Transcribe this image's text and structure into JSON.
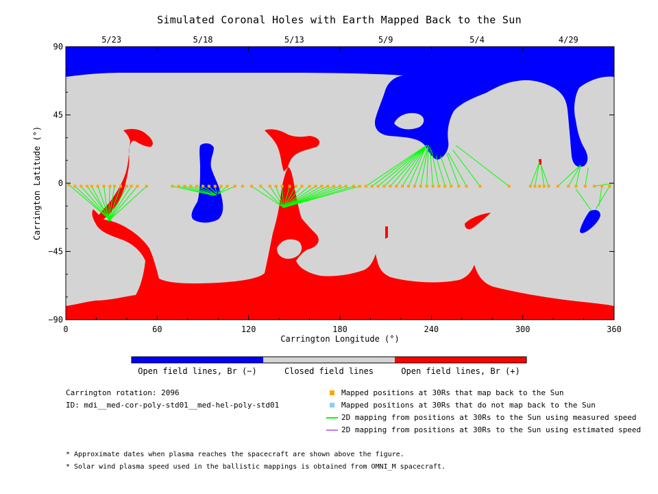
{
  "chart_data": {
    "type": "scatter",
    "title": "Simulated Coronal Holes with Earth Mapped Back to the Sun",
    "xlabel": "Carrington Longitude (°)",
    "ylabel": "Carrington Latitude (°)",
    "xlim": [
      0,
      360
    ],
    "ylim": [
      -90,
      90
    ],
    "x_ticks": [
      "0",
      "60",
      "120",
      "180",
      "240",
      "300",
      "360"
    ],
    "y_ticks": [
      "90",
      "45",
      "0",
      "−45",
      "−90"
    ],
    "top_date_ticks": [
      {
        "label": "5/23",
        "lon": 30
      },
      {
        "label": "5/18",
        "lon": 90
      },
      {
        "label": "5/13",
        "lon": 150
      },
      {
        "label": "5/9",
        "lon": 210
      },
      {
        "label": "5/4",
        "lon": 270
      },
      {
        "label": "4/29",
        "lon": 330
      }
    ],
    "mapped_points": [
      {
        "lon": 2,
        "lat": -1
      },
      {
        "lon": 6,
        "lat": -2
      },
      {
        "lon": 10,
        "lat": -2
      },
      {
        "lon": 14,
        "lat": -2
      },
      {
        "lon": 17,
        "lat": -2
      },
      {
        "lon": 21,
        "lat": -2
      },
      {
        "lon": 25,
        "lat": -2
      },
      {
        "lon": 29,
        "lat": -2
      },
      {
        "lon": 32,
        "lat": -2
      },
      {
        "lon": 36,
        "lat": -2
      },
      {
        "lon": 40,
        "lat": -2
      },
      {
        "lon": 43,
        "lat": -2
      },
      {
        "lon": 47,
        "lat": -2
      },
      {
        "lon": 53,
        "lat": -2
      },
      {
        "lon": 70,
        "lat": -2
      },
      {
        "lon": 74,
        "lat": -2
      },
      {
        "lon": 78,
        "lat": -2
      },
      {
        "lon": 82,
        "lat": -2
      },
      {
        "lon": 86,
        "lat": -2
      },
      {
        "lon": 90,
        "lat": -2
      },
      {
        "lon": 94,
        "lat": -2
      },
      {
        "lon": 98,
        "lat": -2
      },
      {
        "lon": 102,
        "lat": -2
      },
      {
        "lon": 106,
        "lat": -2
      },
      {
        "lon": 111,
        "lat": -2
      },
      {
        "lon": 116,
        "lat": -2
      },
      {
        "lon": 122,
        "lat": -2
      },
      {
        "lon": 128,
        "lat": -2
      },
      {
        "lon": 134,
        "lat": -2
      },
      {
        "lon": 138,
        "lat": -2
      },
      {
        "lon": 142,
        "lat": -2
      },
      {
        "lon": 147,
        "lat": -2
      },
      {
        "lon": 151,
        "lat": -2
      },
      {
        "lon": 155,
        "lat": -2
      },
      {
        "lon": 160,
        "lat": -2
      },
      {
        "lon": 164,
        "lat": -2
      },
      {
        "lon": 168,
        "lat": -2
      },
      {
        "lon": 172,
        "lat": -2
      },
      {
        "lon": 176,
        "lat": -2
      },
      {
        "lon": 180,
        "lat": -2
      },
      {
        "lon": 184,
        "lat": -2
      },
      {
        "lon": 189,
        "lat": -2
      },
      {
        "lon": 193,
        "lat": -2
      },
      {
        "lon": 197,
        "lat": -2
      },
      {
        "lon": 201,
        "lat": -2
      },
      {
        "lon": 205,
        "lat": -2
      },
      {
        "lon": 209,
        "lat": -2
      },
      {
        "lon": 213,
        "lat": -2
      },
      {
        "lon": 217,
        "lat": -2
      },
      {
        "lon": 221,
        "lat": -2
      },
      {
        "lon": 225,
        "lat": -2
      },
      {
        "lon": 229,
        "lat": -2
      },
      {
        "lon": 233,
        "lat": -2
      },
      {
        "lon": 237,
        "lat": -2
      },
      {
        "lon": 241,
        "lat": -2
      },
      {
        "lon": 245,
        "lat": -2
      },
      {
        "lon": 249,
        "lat": -2
      },
      {
        "lon": 253,
        "lat": -2
      },
      {
        "lon": 258,
        "lat": -2
      },
      {
        "lon": 263,
        "lat": -2
      },
      {
        "lon": 272,
        "lat": -2
      },
      {
        "lon": 291,
        "lat": -2
      },
      {
        "lon": 305,
        "lat": -2
      },
      {
        "lon": 308,
        "lat": -2
      },
      {
        "lon": 311,
        "lat": -2
      },
      {
        "lon": 314,
        "lat": -2
      },
      {
        "lon": 317,
        "lat": -2
      },
      {
        "lon": 323,
        "lat": -2
      },
      {
        "lon": 330,
        "lat": -2
      },
      {
        "lon": 335,
        "lat": -2
      },
      {
        "lon": 341,
        "lat": -2
      },
      {
        "lon": 347,
        "lat": -2
      },
      {
        "lon": 352,
        "lat": -2
      },
      {
        "lon": 357,
        "lat": -2
      }
    ],
    "measured_speed_mappings": [
      {
        "from": [
          2,
          -1
        ],
        "to": [
          30,
          -25
        ]
      },
      {
        "from": [
          6,
          -2
        ],
        "to": [
          30,
          -25
        ]
      },
      {
        "from": [
          10,
          -2
        ],
        "to": [
          30,
          -25
        ]
      },
      {
        "from": [
          14,
          -2
        ],
        "to": [
          30,
          -25
        ]
      },
      {
        "from": [
          17,
          -2
        ],
        "to": [
          29,
          -25
        ]
      },
      {
        "from": [
          21,
          -2
        ],
        "to": [
          29,
          -25
        ]
      },
      {
        "from": [
          25,
          -2
        ],
        "to": [
          28,
          -25
        ]
      },
      {
        "from": [
          29,
          -2
        ],
        "to": [
          28,
          -25
        ]
      },
      {
        "from": [
          32,
          -2
        ],
        "to": [
          28,
          -25
        ]
      },
      {
        "from": [
          36,
          -2
        ],
        "to": [
          28,
          -25
        ]
      },
      {
        "from": [
          40,
          -2
        ],
        "to": [
          28,
          -25
        ]
      },
      {
        "from": [
          43,
          -2
        ],
        "to": [
          28,
          -25
        ]
      },
      {
        "from": [
          47,
          -2
        ],
        "to": [
          28,
          -25
        ]
      },
      {
        "from": [
          53,
          -2
        ],
        "to": [
          28,
          -25
        ]
      },
      {
        "from": [
          70,
          -2
        ],
        "to": [
          97,
          -8
        ]
      },
      {
        "from": [
          74,
          -2
        ],
        "to": [
          97,
          -8
        ]
      },
      {
        "from": [
          78,
          -2
        ],
        "to": [
          98,
          -8
        ]
      },
      {
        "from": [
          82,
          -2
        ],
        "to": [
          98,
          -8
        ]
      },
      {
        "from": [
          86,
          -2
        ],
        "to": [
          99,
          -8
        ]
      },
      {
        "from": [
          90,
          -2
        ],
        "to": [
          99,
          -8
        ]
      },
      {
        "from": [
          94,
          -2
        ],
        "to": [
          99,
          -7
        ]
      },
      {
        "from": [
          98,
          -2
        ],
        "to": [
          99,
          -7
        ]
      },
      {
        "from": [
          102,
          -2
        ],
        "to": [
          100,
          -7
        ]
      },
      {
        "from": [
          106,
          -2
        ],
        "to": [
          100,
          -7
        ]
      },
      {
        "from": [
          111,
          -2
        ],
        "to": [
          100,
          -7
        ]
      },
      {
        "from": [
          122,
          -2
        ],
        "to": [
          143,
          -16
        ]
      },
      {
        "from": [
          128,
          -2
        ],
        "to": [
          143,
          -16
        ]
      },
      {
        "from": [
          134,
          -2
        ],
        "to": [
          143,
          -16
        ]
      },
      {
        "from": [
          138,
          -2
        ],
        "to": [
          143,
          -16
        ]
      },
      {
        "from": [
          142,
          -2
        ],
        "to": [
          143,
          -16
        ]
      },
      {
        "from": [
          147,
          -2
        ],
        "to": [
          143,
          -16
        ]
      },
      {
        "from": [
          151,
          -2
        ],
        "to": [
          143,
          -16
        ]
      },
      {
        "from": [
          155,
          -2
        ],
        "to": [
          143,
          -16
        ]
      },
      {
        "from": [
          160,
          -2
        ],
        "to": [
          143,
          -16
        ]
      },
      {
        "from": [
          164,
          -2
        ],
        "to": [
          143,
          -16
        ]
      },
      {
        "from": [
          168,
          -2
        ],
        "to": [
          143,
          -16
        ]
      },
      {
        "from": [
          172,
          -2
        ],
        "to": [
          143,
          -16
        ]
      },
      {
        "from": [
          176,
          -2
        ],
        "to": [
          143,
          -16
        ]
      },
      {
        "from": [
          180,
          -2
        ],
        "to": [
          143,
          -16
        ]
      },
      {
        "from": [
          184,
          -2
        ],
        "to": [
          143,
          -16
        ]
      },
      {
        "from": [
          189,
          -2
        ],
        "to": [
          143,
          -16
        ]
      },
      {
        "from": [
          193,
          -2
        ],
        "to": [
          143,
          -16
        ]
      },
      {
        "from": [
          197,
          -2
        ],
        "to": [
          237,
          25
        ]
      },
      {
        "from": [
          201,
          -2
        ],
        "to": [
          237,
          25
        ]
      },
      {
        "from": [
          205,
          -2
        ],
        "to": [
          237,
          25
        ]
      },
      {
        "from": [
          209,
          -2
        ],
        "to": [
          237,
          25
        ]
      },
      {
        "from": [
          213,
          -2
        ],
        "to": [
          237,
          25
        ]
      },
      {
        "from": [
          217,
          -2
        ],
        "to": [
          237,
          25
        ]
      },
      {
        "from": [
          221,
          -2
        ],
        "to": [
          237,
          25
        ]
      },
      {
        "from": [
          225,
          -2
        ],
        "to": [
          237,
          25
        ]
      },
      {
        "from": [
          229,
          -2
        ],
        "to": [
          238,
          25
        ]
      },
      {
        "from": [
          233,
          -2
        ],
        "to": [
          238,
          25
        ]
      },
      {
        "from": [
          237,
          -2
        ],
        "to": [
          238,
          25
        ]
      },
      {
        "from": [
          241,
          -2
        ],
        "to": [
          239,
          24
        ]
      },
      {
        "from": [
          245,
          -2
        ],
        "to": [
          240,
          22
        ]
      },
      {
        "from": [
          249,
          -2
        ],
        "to": [
          243,
          18
        ]
      },
      {
        "from": [
          253,
          -2
        ],
        "to": [
          246,
          18
        ]
      },
      {
        "from": [
          258,
          -2
        ],
        "to": [
          250,
          20
        ]
      },
      {
        "from": [
          263,
          -2
        ],
        "to": [
          251,
          20
        ]
      },
      {
        "from": [
          272,
          -2
        ],
        "to": [
          254,
          22
        ]
      },
      {
        "from": [
          291,
          -2
        ],
        "to": [
          256,
          25
        ]
      },
      {
        "from": [
          305,
          -2
        ],
        "to": [
          311,
          14
        ]
      },
      {
        "from": [
          308,
          -2
        ],
        "to": [
          311,
          14
        ]
      },
      {
        "from": [
          314,
          -2
        ],
        "to": [
          312,
          12
        ]
      },
      {
        "from": [
          317,
          -2
        ],
        "to": [
          312,
          12
        ]
      },
      {
        "from": [
          323,
          -2
        ],
        "to": [
          338,
          12
        ]
      },
      {
        "from": [
          330,
          -2
        ],
        "to": [
          338,
          12
        ]
      },
      {
        "from": [
          335,
          -2
        ],
        "to": [
          338,
          12
        ]
      },
      {
        "from": [
          341,
          -2
        ],
        "to": [
          343,
          10
        ]
      },
      {
        "from": [
          347,
          -2
        ],
        "to": [
          360,
          0
        ]
      },
      {
        "from": [
          352,
          -2
        ],
        "to": [
          350,
          -15
        ]
      },
      {
        "from": [
          357,
          -2
        ],
        "to": [
          348,
          -17
        ]
      },
      {
        "from": [
          335,
          -4
        ],
        "to": [
          345,
          -18
        ]
      }
    ]
  },
  "colorbar": {
    "colors": [
      "#0000ff",
      "#d4d4d4",
      "#ff0000"
    ],
    "labels": [
      "Open field lines, Br (−)",
      "Closed field lines",
      "Open field lines, Br (+)"
    ]
  },
  "info": {
    "rotation": "Carrington rotation: 2096",
    "id": "ID: mdi__med-cor-poly-std01__med-hel-poly-std01"
  },
  "legend": [
    {
      "symbol": "square",
      "color": "#ffa500",
      "text": "Mapped positions at 30Rs that map back to the Sun"
    },
    {
      "symbol": "square",
      "color": "#87cefa",
      "text": "Mapped positions at 30Rs that do not map back to the Sun"
    },
    {
      "symbol": "line",
      "color": "#00ff00",
      "text": "2D mapping from positions at 30Rs to the Sun using measured speed"
    },
    {
      "symbol": "line",
      "color": "#b77cf0",
      "text": "2D mapping from positions at 30Rs to the Sun using estimated speed"
    }
  ],
  "footnotes": [
    "* Approximate dates when plasma reaches the spacecraft are shown above the figure.",
    "* Solar wind plasma speed used in the ballistic mappings is obtained from OMNI_M spacecraft."
  ],
  "colors": {
    "negative_open": "#0000ff",
    "closed": "#d4d4d4",
    "positive_open": "#ff0000",
    "mapped": "#ffa500",
    "measured_line": "#00ff00"
  }
}
